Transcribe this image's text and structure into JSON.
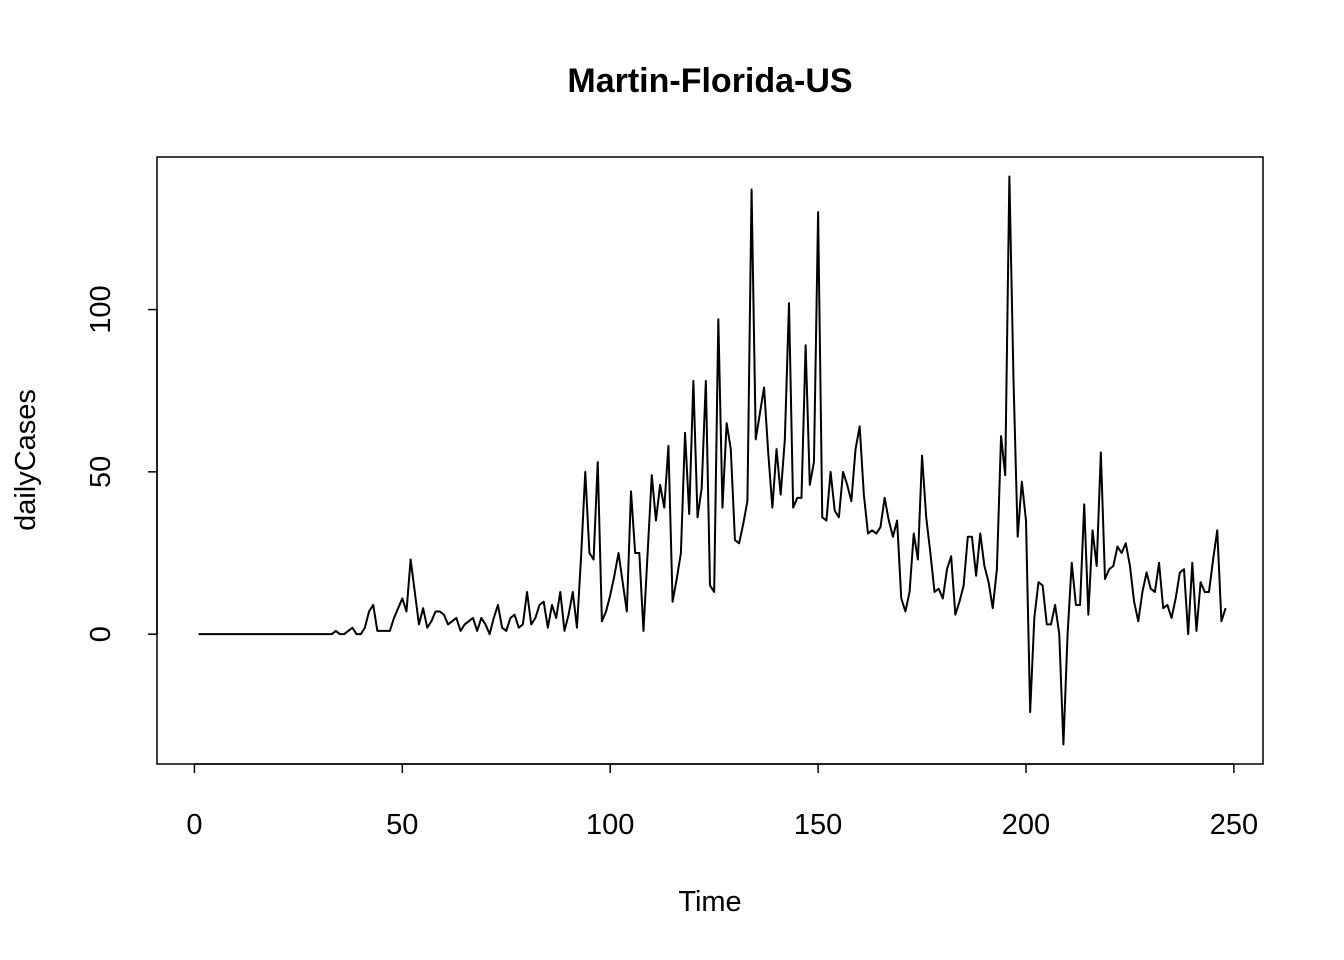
{
  "chart_data": {
    "type": "line",
    "title": "Martin-Florida-US",
    "xlabel": "Time",
    "ylabel": "dailyCases",
    "xlim": [
      -9,
      257
    ],
    "ylim": [
      -40,
      147
    ],
    "xticks": [
      0,
      50,
      100,
      150,
      200,
      250
    ],
    "yticks": [
      0,
      50,
      100
    ],
    "grid": false,
    "series": [
      {
        "x_start": 1,
        "values": [
          0,
          0,
          0,
          0,
          0,
          0,
          0,
          0,
          0,
          0,
          0,
          0,
          0,
          0,
          0,
          0,
          0,
          0,
          0,
          0,
          0,
          0,
          0,
          0,
          0,
          0,
          0,
          0,
          0,
          0,
          0,
          0,
          0,
          1,
          0,
          0,
          1,
          2,
          0,
          0,
          2,
          7,
          9,
          1,
          1,
          1,
          1,
          5,
          8,
          11,
          7,
          23,
          13,
          3,
          8,
          2,
          4,
          7,
          7,
          6,
          3,
          4,
          5,
          1,
          3,
          4,
          5,
          1,
          5,
          3,
          0,
          5,
          9,
          2,
          1,
          5,
          6,
          2,
          3,
          13,
          3,
          5,
          9,
          10,
          2,
          9,
          5,
          13,
          1,
          6,
          13,
          2,
          24,
          50,
          25,
          23,
          53,
          4,
          7,
          12,
          18,
          25,
          16,
          7,
          44,
          25,
          25,
          1,
          25,
          49,
          35,
          46,
          39,
          58,
          10,
          17,
          25,
          62,
          37,
          78,
          36,
          45,
          78,
          15,
          13,
          97,
          39,
          65,
          57,
          29,
          28,
          34,
          41,
          137,
          60,
          68,
          76,
          56,
          39,
          57,
          43,
          60,
          102,
          39,
          42,
          42,
          89,
          46,
          53,
          130,
          36,
          35,
          50,
          38,
          36,
          50,
          46,
          41,
          57,
          64,
          43,
          31,
          32,
          31,
          33,
          42,
          35,
          30,
          35,
          11,
          7,
          13,
          31,
          23,
          55,
          36,
          25,
          13,
          14,
          11,
          20,
          24,
          6,
          10,
          15,
          30,
          30,
          18,
          31,
          21,
          16,
          8,
          20,
          61,
          49,
          141,
          78,
          30,
          47,
          35,
          -24,
          5,
          16,
          15,
          3,
          3,
          9,
          0,
          -34,
          0,
          22,
          9,
          9,
          40,
          6,
          32,
          21,
          56,
          17,
          20,
          21,
          27,
          25,
          28,
          21,
          10,
          4,
          13,
          19,
          14,
          13,
          22,
          8,
          9,
          5,
          11,
          19,
          20,
          0,
          22,
          1,
          16,
          13,
          13,
          23,
          32,
          4,
          8
        ]
      }
    ]
  }
}
